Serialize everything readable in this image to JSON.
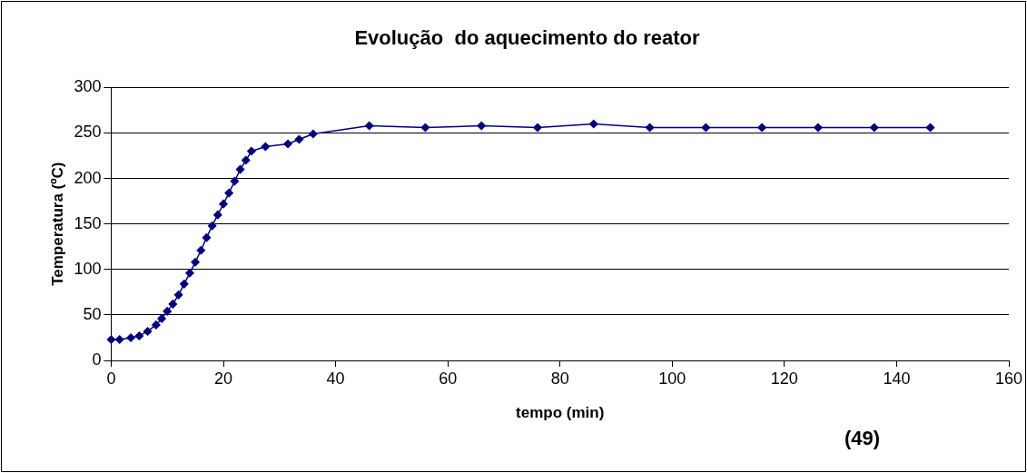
{
  "chart_data": {
    "type": "line",
    "title": "Evolução  do aquecimento do reator",
    "xlabel": "tempo (min)",
    "ylabel": "Temperatura (ºC)",
    "annotations": [
      "(49)"
    ],
    "x": [
      0,
      1.5,
      3.5,
      5,
      6.5,
      8,
      9,
      10,
      11,
      12,
      13,
      14,
      15,
      16,
      17,
      18,
      19,
      20,
      21,
      22,
      23,
      24,
      25,
      27.5,
      31.5,
      33.5,
      36,
      46,
      56,
      66,
      76,
      86,
      96,
      106,
      116,
      126,
      136,
      146
    ],
    "series": [
      {
        "color": "#000080",
        "values": [
          23,
          23,
          25,
          27,
          32,
          39,
          46,
          54,
          62,
          72,
          84,
          96,
          108,
          121,
          135,
          148,
          160,
          172,
          184,
          197,
          210,
          220,
          230,
          235,
          238,
          243,
          249,
          258,
          256,
          258,
          256,
          260,
          256,
          256,
          256,
          256,
          256,
          256
        ]
      }
    ],
    "xlim": [
      0,
      160
    ],
    "xticks": [
      0,
      20,
      40,
      60,
      80,
      100,
      120,
      140,
      160
    ],
    "ylim": [
      0,
      300
    ],
    "yticks": [
      0,
      50,
      100,
      150,
      200,
      250,
      300
    ],
    "grid": "y",
    "legend": false,
    "marker": "diamond",
    "line_style": "solid"
  }
}
